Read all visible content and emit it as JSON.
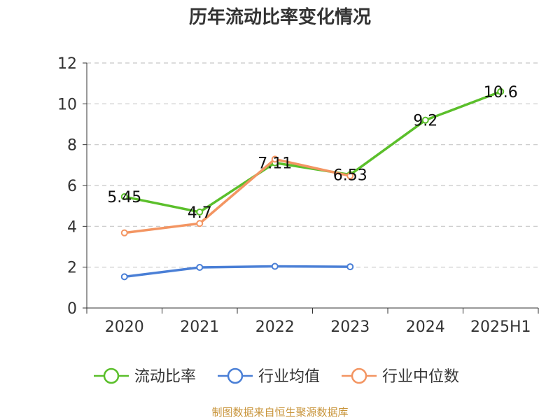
{
  "chart_data": {
    "type": "line",
    "title": "历年流动比率变化情况",
    "categories": [
      "2020",
      "2021",
      "2022",
      "2023",
      "2024",
      "2025H1"
    ],
    "ylim": [
      0,
      12
    ],
    "yticks": [
      0,
      2,
      4,
      6,
      8,
      10,
      12
    ],
    "grid": true,
    "legend_position": "bottom",
    "series": [
      {
        "name": "流动比率",
        "color": "#5bbf2b",
        "values": [
          5.45,
          4.7,
          7.11,
          6.53,
          9.2,
          10.6
        ],
        "labels": [
          "5.45",
          "4.7",
          "7.11",
          "6.53",
          "9.2",
          "10.6"
        ]
      },
      {
        "name": "行业均值",
        "color": "#4a7fd6",
        "values": [
          1.53,
          1.99,
          2.04,
          2.02,
          null,
          null
        ]
      },
      {
        "name": "行业中位数",
        "color": "#f39562",
        "values": [
          3.68,
          4.14,
          7.29,
          6.47,
          null,
          null
        ]
      }
    ]
  },
  "source": "制图数据来自恒生聚源数据库"
}
